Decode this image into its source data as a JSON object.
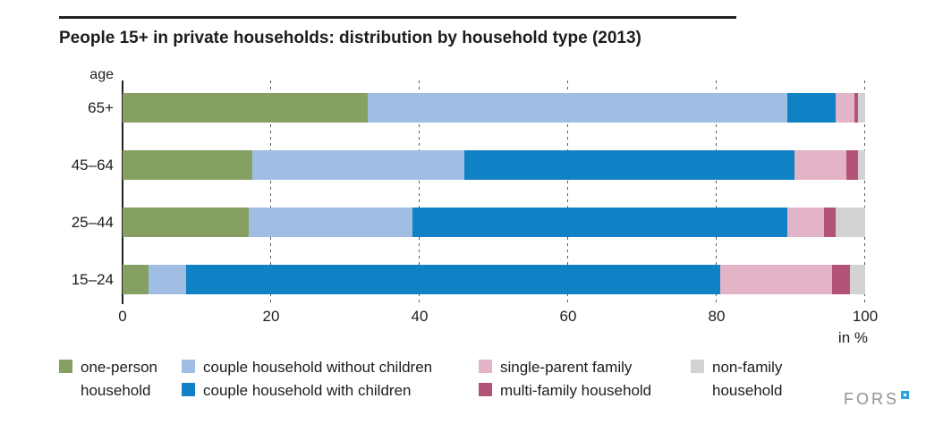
{
  "title": "People 15+ in private households: distribution by household type (2013)",
  "chart_data": {
    "type": "bar",
    "orientation": "horizontal-stacked",
    "title": "People 15+ in private households: distribution by household type (2013)",
    "axis_label": "age",
    "unit_label": "in %",
    "categories": [
      "65+",
      "45–64",
      "25–44",
      "15–24"
    ],
    "series": [
      {
        "name": "one-person household",
        "color": "#86a064",
        "values": [
          33,
          17.5,
          17,
          3.5
        ]
      },
      {
        "name": "couple household without children",
        "color": "#a0bee3",
        "values": [
          56.5,
          28.5,
          22,
          5
        ]
      },
      {
        "name": "couple household with children",
        "color": "#1181c5",
        "values": [
          6.5,
          44.5,
          50.5,
          72
        ]
      },
      {
        "name": "single-parent family",
        "color": "#e3b4c7",
        "values": [
          2.5,
          7,
          5,
          15
        ]
      },
      {
        "name": "multi-family household",
        "color": "#b25377",
        "values": [
          0.5,
          1.5,
          1.5,
          2.5
        ]
      },
      {
        "name": "non-family household",
        "color": "#d2d2d2",
        "values": [
          1,
          1,
          4,
          2
        ]
      }
    ],
    "x_ticks": [
      0,
      20,
      40,
      60,
      80,
      100
    ],
    "xlim": [
      0,
      100
    ],
    "grid": "dashed-vertical",
    "legend_position": "bottom"
  },
  "legend": {
    "items": [
      {
        "label": "one-person\nhousehold",
        "color": "#86a064"
      },
      {
        "label": "couple household without children",
        "color": "#a0bee3"
      },
      {
        "label": "couple household with children",
        "color": "#1181c5"
      },
      {
        "label": "single-parent family",
        "color": "#e3b4c7"
      },
      {
        "label": "multi-family household",
        "color": "#b25377"
      },
      {
        "label": "non-family\nhousehold",
        "color": "#d2d2d2"
      }
    ]
  },
  "logo": {
    "text": "FORS"
  }
}
